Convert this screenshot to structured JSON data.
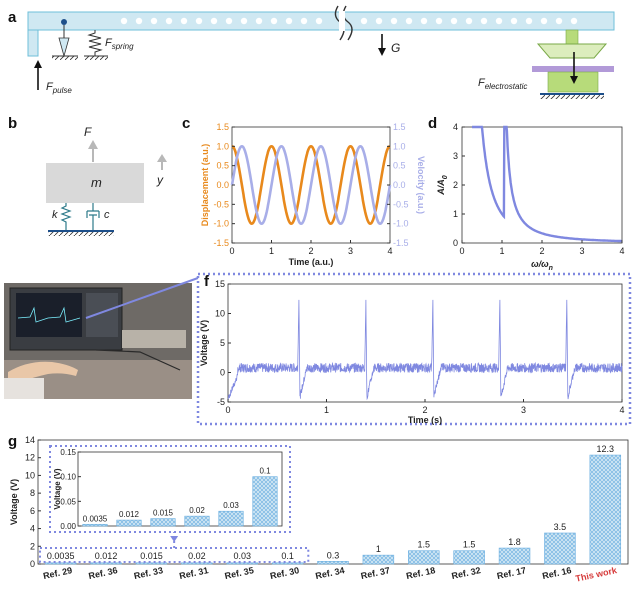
{
  "panels": {
    "a": "a",
    "b": "b",
    "c": "c",
    "d": "d",
    "e": "e",
    "f": "f",
    "g": "g"
  },
  "colors": {
    "orange": "#e8891c",
    "lavender": "#a8aee8",
    "blue_line": "#7f88e0",
    "beam": "#cfe8f2",
    "beam_edge": "#6fbfd9",
    "green": "#b7db7a",
    "purple": "#b29ad8",
    "bar": "#8cc4e4"
  },
  "panel_a": {
    "f_spring": "F",
    "f_spring_sub": "spring",
    "g_label": "G",
    "f_pulse": "F",
    "f_pulse_sub": "pulse",
    "f_electro": "F",
    "f_electro_sub": "electrostatic"
  },
  "panel_b": {
    "F": "F",
    "m": "m",
    "y": "y",
    "k": "k",
    "c": "c"
  },
  "chart_data": [
    {
      "id": "c",
      "type": "line",
      "xlabel": "Time (a.u.)",
      "ylabel_left": "Displacement (a.u.)",
      "ylabel_right": "Velocity (a.u.)",
      "xlim": [
        0,
        4
      ],
      "ylim": [
        -1.5,
        1.5
      ],
      "x_ticks": [
        "0",
        "1",
        "2",
        "3",
        "4"
      ],
      "y_ticks_left": [
        "1.5",
        "1.0",
        "0.5",
        "0.0",
        "-0.5",
        "-1.0",
        "-1.5"
      ],
      "y_ticks_right": [
        "1.5",
        "1.0",
        "0.5",
        "0.0",
        "-0.5",
        "-1.0",
        "-1.5"
      ],
      "series": [
        {
          "values": "cos(2*pi*t)",
          "color": "#e8891c"
        },
        {
          "values": "sin(2*pi*t)",
          "color": "#a8aee8"
        }
      ]
    },
    {
      "id": "d",
      "type": "line",
      "xlabel": "ω/ω",
      "xlabel_sub": "n",
      "ylabel": "A/A",
      "ylabel_sub": "0",
      "xlim": [
        0,
        4
      ],
      "ylim": [
        0,
        4
      ],
      "x_ticks": [
        "0",
        "1",
        "2",
        "3",
        "4"
      ],
      "y_ticks": [
        "0",
        "1",
        "2",
        "3",
        "4"
      ]
    },
    {
      "id": "f",
      "type": "line",
      "xlabel": "Time (s)",
      "ylabel": "Voltage (V)",
      "xlim": [
        0,
        4
      ],
      "ylim": [
        -5,
        15
      ],
      "x_ticks": [
        "0",
        "1",
        "2",
        "3",
        "4"
      ],
      "y_ticks": [
        "15",
        "10",
        "5",
        "0",
        "-5"
      ],
      "pulse_times": [
        0.72,
        1.4,
        2.08,
        2.76,
        3.44
      ],
      "peak_value": 12.3,
      "baseline": 0.8
    },
    {
      "id": "g",
      "type": "bar",
      "ylabel": "Voltage (V)",
      "ylim": [
        0,
        14
      ],
      "y_ticks": [
        "14",
        "12",
        "10",
        "8",
        "6",
        "4",
        "2",
        "0"
      ],
      "categories": [
        "Ref. 29",
        "Ref. 36",
        "Ref. 33",
        "Ref. 31",
        "Ref. 35",
        "Ref. 30",
        "Ref. 34",
        "Ref. 37",
        "Ref. 18",
        "Ref. 32",
        "Ref. 17",
        "Ref. 16",
        "This work"
      ],
      "values": [
        0.0035,
        0.012,
        0.015,
        0.02,
        0.03,
        0.1,
        0.3,
        1,
        1.5,
        1.5,
        1.8,
        3.5,
        12.3
      ],
      "value_labels": [
        "0.0035",
        "0.012",
        "0.015",
        "0.02",
        "0.03",
        "0.1",
        "0.3",
        "1",
        "1.5",
        "1.5",
        "1.8",
        "3.5",
        "12.3"
      ],
      "highlight_color": "#d63a3a",
      "inset": {
        "ylabel": "Voltage (V)",
        "ylim": [
          0,
          0.15
        ],
        "y_ticks": [
          "0.15",
          "0.10",
          "0.05",
          "0.00"
        ],
        "values": [
          0.0035,
          0.012,
          0.015,
          0.02,
          0.03,
          0.1
        ],
        "value_labels": [
          "0.0035",
          "0.012",
          "0.015",
          "0.02",
          "0.03",
          "0.1"
        ]
      }
    }
  ]
}
